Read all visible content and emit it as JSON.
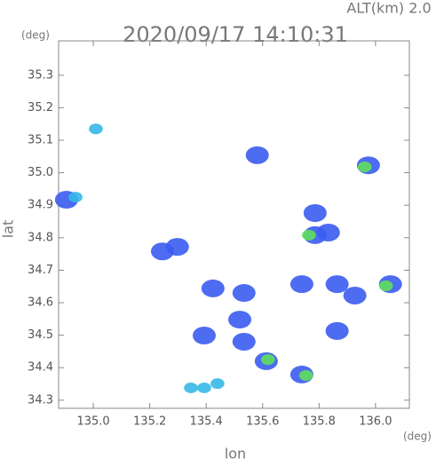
{
  "chart_data": {
    "type": "scatter",
    "title": "2020/09/17 14:10:31",
    "subtitle": "ALT(km) 2.0",
    "x_label": "lon",
    "y_label": "lat",
    "x_unit": "(deg)",
    "y_unit": "(deg)",
    "xlim": [
      134.877,
      136.12
    ],
    "ylim": [
      34.275,
      35.406
    ],
    "xticks": [
      {
        "value": 135.0,
        "label": "135.0"
      },
      135.2,
      135.4,
      135.6,
      135.8,
      {
        "value": 136.0,
        "label": "136.0"
      }
    ],
    "yticks": [
      {
        "value": 34.3,
        "label": "34.3"
      },
      34.4,
      34.5,
      34.6,
      34.7,
      34.8,
      34.9,
      {
        "value": 35.0,
        "label": "35.0"
      },
      35.1,
      35.2,
      35.3
    ],
    "series": [
      {
        "color": "#3a5cf0",
        "x": [
          134.905,
          135.975,
          135.786,
          135.786,
          135.833,
          136.053,
          135.739,
          135.613,
          135.534,
          135.519,
          135.534,
          135.424,
          135.864,
          135.927,
          135.739,
          135.864,
          135.245,
          135.298,
          135.581,
          135.393
        ],
        "y": [
          34.917,
          35.023,
          34.876,
          34.808,
          34.816,
          34.657,
          34.379,
          34.42,
          34.63,
          34.548,
          34.48,
          34.644,
          34.657,
          34.622,
          34.657,
          34.513,
          34.758,
          34.772,
          35.054,
          34.499
        ]
      },
      {
        "color": "#35b8e8",
        "x": [
          134.937,
          135.009,
          135.44,
          135.393,
          135.346
        ],
        "y": [
          34.925,
          35.135,
          34.351,
          34.338,
          34.338
        ]
      },
      {
        "color": "#5fe05a",
        "x": [
          135.962,
          135.764,
          136.037,
          135.754,
          135.619
        ],
        "y": [
          35.018,
          34.808,
          34.652,
          34.376,
          34.425
        ]
      }
    ]
  }
}
